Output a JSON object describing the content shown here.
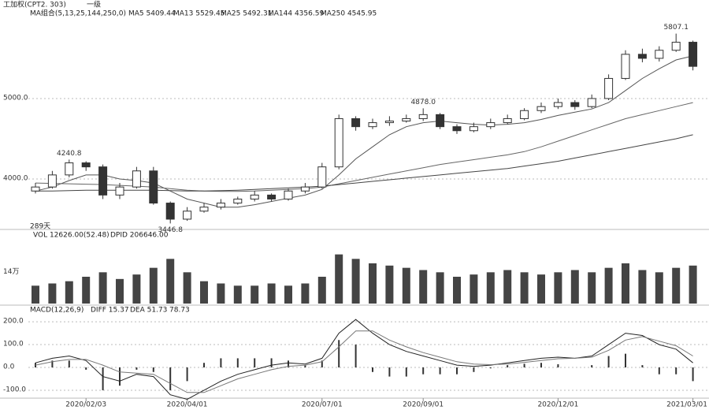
{
  "header": {
    "symbol": "工加权(CPT2. 303)",
    "period": "一级",
    "ma_title": "MA组合(5,13,25,144,250,0)",
    "ma_items": [
      "MA5 5409.44",
      "MA13 5529.45",
      "MA25 5492.31",
      "MA144 4356.59",
      "MA250 4545.95"
    ],
    "days": "289天"
  },
  "chart_data": [
    {
      "type": "candlestick",
      "categories": [
        null,
        null,
        null,
        "2020/02/03",
        null,
        null,
        null,
        null,
        null,
        "2020/04/01",
        null,
        null,
        null,
        null,
        null,
        null,
        null,
        "2020/07/01",
        null,
        null,
        null,
        null,
        null,
        "2020/09/01",
        null,
        null,
        null,
        null,
        null,
        null,
        null,
        "2020/12/01",
        null,
        null,
        null,
        null,
        null,
        null,
        null,
        "2021/03/01"
      ],
      "open": [
        3850,
        3900,
        4050,
        4200,
        4150,
        3800,
        3900,
        4100,
        3700,
        3500,
        3600,
        3650,
        3700,
        3750,
        3800,
        3750,
        3850,
        3900,
        4150,
        4750,
        4650,
        4700,
        4720,
        4750,
        4800,
        4650,
        4600,
        4650,
        4700,
        4750,
        4850,
        4900,
        4950,
        4900,
        5000,
        5250,
        5550,
        5500,
        5600,
        5700
      ],
      "high": [
        3950,
        4100,
        4240.8,
        4220,
        4180,
        3950,
        4150,
        4150,
        3720,
        3650,
        3700,
        3750,
        3780,
        3850,
        3820,
        3880,
        3950,
        4200,
        4800,
        4780,
        4750,
        4780,
        4800,
        4878,
        4820,
        4680,
        4700,
        4750,
        4800,
        4880,
        4950,
        5000,
        4980,
        5050,
        5300,
        5600,
        5620,
        5650,
        5807.1,
        5720
      ],
      "low": [
        3820,
        3880,
        4020,
        4100,
        3750,
        3750,
        3880,
        3680,
        3446.8,
        3480,
        3580,
        3620,
        3680,
        3720,
        3720,
        3730,
        3820,
        3880,
        4120,
        4600,
        4620,
        4660,
        4700,
        4720,
        4620,
        4560,
        4580,
        4620,
        4680,
        4730,
        4820,
        4870,
        4860,
        4880,
        4980,
        5230,
        5450,
        5460,
        5580,
        5350
      ],
      "close": [
        3900,
        4050,
        4200,
        4150,
        3800,
        3900,
        4100,
        3700,
        3500,
        3600,
        3650,
        3700,
        3750,
        3800,
        3750,
        3850,
        3900,
        4150,
        4750,
        4650,
        4700,
        4720,
        4750,
        4800,
        4650,
        4600,
        4650,
        4700,
        4750,
        4850,
        4900,
        4950,
        4900,
        5000,
        5250,
        5550,
        5500,
        5600,
        5700,
        5400
      ],
      "ma_lines": [
        {
          "color": "#555555",
          "values": [
            3850,
            3900,
            3980,
            4050,
            4050,
            4000,
            3980,
            3950,
            3850,
            3750,
            3700,
            3650,
            3650,
            3680,
            3720,
            3760,
            3800,
            3870,
            4050,
            4250,
            4400,
            4550,
            4650,
            4700,
            4720,
            4700,
            4680,
            4670,
            4680,
            4700,
            4740,
            4790,
            4830,
            4870,
            4950,
            5100,
            5250,
            5370,
            5480,
            5530
          ]
        },
        {
          "color": "#666666",
          "values": [
            3950,
            3945,
            3940,
            3935,
            3930,
            3920,
            3910,
            3900,
            3880,
            3860,
            3850,
            3845,
            3845,
            3850,
            3860,
            3870,
            3880,
            3900,
            3940,
            3980,
            4020,
            4060,
            4100,
            4140,
            4180,
            4210,
            4240,
            4270,
            4300,
            4340,
            4400,
            4470,
            4540,
            4610,
            4680,
            4750,
            4800,
            4850,
            4900,
            4950
          ]
        },
        {
          "color": "#444444",
          "values": [
            3850,
            3850,
            3855,
            3860,
            3860,
            3860,
            3860,
            3860,
            3855,
            3850,
            3850,
            3855,
            3860,
            3870,
            3880,
            3890,
            3900,
            3910,
            3930,
            3950,
            3970,
            3990,
            4010,
            4030,
            4050,
            4070,
            4090,
            4110,
            4130,
            4160,
            4190,
            4220,
            4260,
            4300,
            4340,
            4380,
            4420,
            4460,
            4500,
            4550
          ]
        }
      ],
      "annotations": [
        {
          "value": 5807.1,
          "label": "5807.1"
        },
        {
          "value": 4240.8,
          "label": "4240.8"
        },
        {
          "value": 4878,
          "label": "4878.0"
        },
        {
          "value": 3446.8,
          "label": "3446.8"
        }
      ],
      "ylim": [
        3382,
        6127
      ],
      "yticks": [
        {
          "value": 5000,
          "label": "5000.0"
        },
        {
          "value": 4000,
          "label": "4000.0"
        }
      ],
      "grid": true,
      "color": "#333333"
    },
    {
      "type": "bar",
      "title": "VOL 12626.00(52.48)",
      "subtitle": "DPID 206646.00",
      "values": [
        8,
        9,
        10,
        12,
        14,
        11,
        13,
        16,
        20,
        14,
        10,
        9,
        8,
        8,
        9,
        8,
        9,
        12,
        22,
        20,
        18,
        17,
        16,
        15,
        14,
        12,
        13,
        14,
        15,
        14,
        13,
        14,
        15,
        14,
        16,
        18,
        15,
        14,
        16,
        17
      ],
      "ylim": [
        0,
        30
      ],
      "yticks": [
        {
          "value": 14,
          "label": "14万"
        }
      ],
      "color": "#444444"
    },
    {
      "type": "macd",
      "title": "MACD(12,26,9)",
      "legend": [
        "DIFF 15.37",
        "DEA 51.73",
        "78.73"
      ],
      "diff": [
        20,
        40,
        50,
        30,
        -40,
        -60,
        -30,
        -40,
        -120,
        -140,
        -100,
        -60,
        -30,
        -10,
        10,
        20,
        15,
        40,
        150,
        210,
        150,
        100,
        70,
        50,
        30,
        10,
        5,
        10,
        20,
        30,
        40,
        45,
        40,
        50,
        100,
        150,
        140,
        100,
        80,
        20
      ],
      "dea": [
        10,
        25,
        35,
        35,
        10,
        -20,
        -25,
        -30,
        -70,
        -110,
        -110,
        -80,
        -50,
        -30,
        -10,
        5,
        10,
        25,
        90,
        160,
        160,
        120,
        90,
        65,
        45,
        25,
        15,
        12,
        15,
        22,
        30,
        38,
        40,
        45,
        75,
        120,
        135,
        115,
        95,
        50
      ],
      "values": [
        20,
        30,
        30,
        -10,
        -100,
        -80,
        -10,
        -20,
        -100,
        -60,
        20,
        40,
        40,
        40,
        40,
        30,
        10,
        30,
        120,
        100,
        -20,
        -40,
        -40,
        -30,
        -30,
        -30,
        -20,
        -4,
        10,
        16,
        20,
        14,
        0,
        10,
        50,
        60,
        10,
        -30,
        -30,
        -60
      ],
      "ylim": [
        -152,
        228
      ],
      "yticks": [
        {
          "value": 200,
          "label": "200.0"
        },
        {
          "value": 100,
          "label": "100.0"
        },
        {
          "value": 0,
          "label": "0.0"
        },
        {
          "value": -100,
          "label": "-100.0"
        }
      ],
      "grid": true,
      "color": "#333333"
    }
  ]
}
